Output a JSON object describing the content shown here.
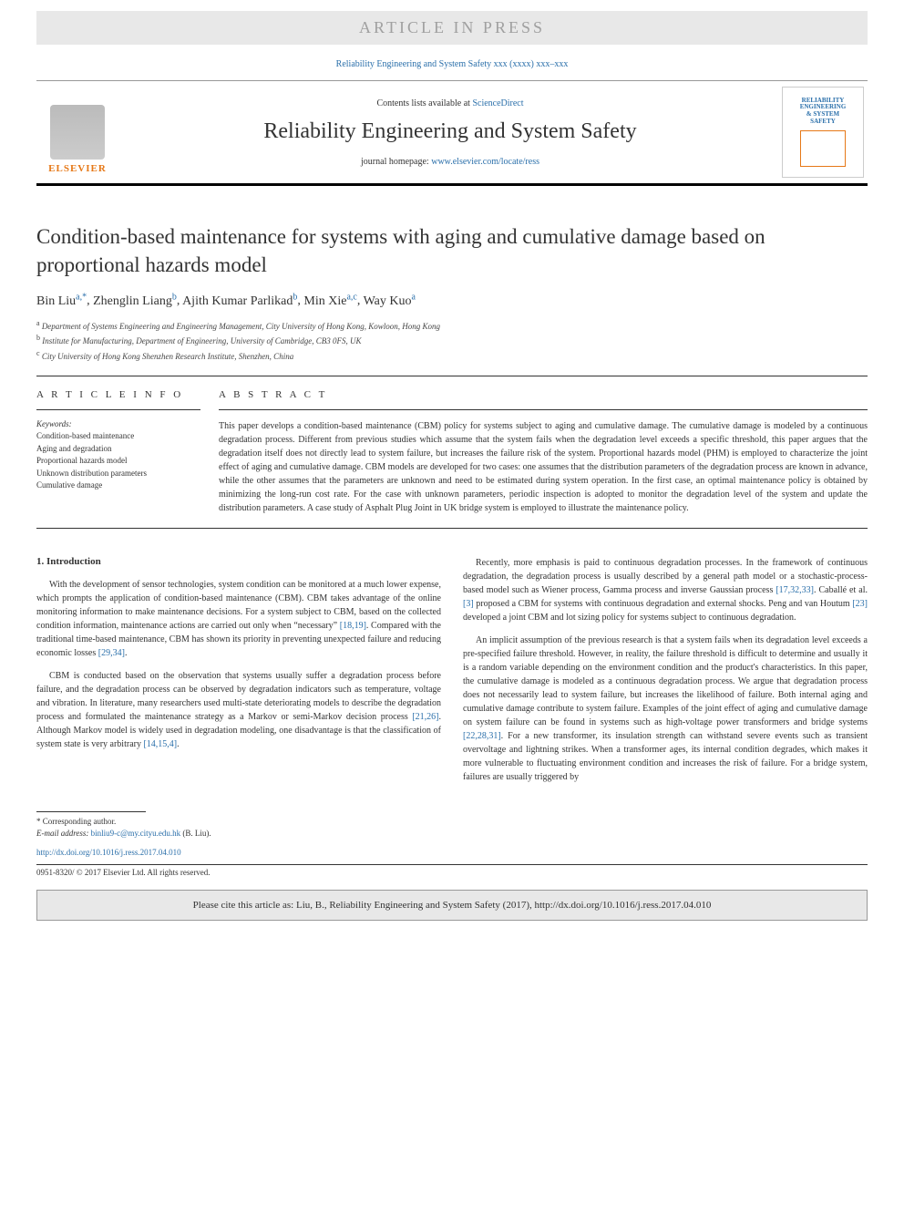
{
  "banner": {
    "text": "ARTICLE IN PRESS",
    "bg_color": "#e8e8e8",
    "text_color": "#a0a0a0"
  },
  "journal_reference": "Reliability Engineering and System Safety xxx (xxxx) xxx–xxx",
  "header": {
    "contents_prefix": "Contents lists available at ",
    "contents_link": "ScienceDirect",
    "journal_title": "Reliability Engineering and System Safety",
    "homepage_prefix": "journal homepage: ",
    "homepage_url": "www.elsevier.com/locate/ress",
    "publisher_logo": "ELSEVIER",
    "cover_lines": [
      "RELIABILITY",
      "ENGINEERING",
      "& SYSTEM",
      "SAFETY"
    ]
  },
  "article": {
    "title": "Condition-based maintenance for systems with aging and cumulative damage based on proportional hazards model",
    "authors_html": "Bin Liu<sup>a,*</sup>, Zhenglin Liang<sup>b</sup>, Ajith Kumar Parlikad<sup>b</sup>, Min Xie<sup>a,c</sup>, Way Kuo<sup>a</sup>",
    "authors": [
      {
        "name": "Bin Liu",
        "marks": "a,*"
      },
      {
        "name": "Zhenglin Liang",
        "marks": "b"
      },
      {
        "name": "Ajith Kumar Parlikad",
        "marks": "b"
      },
      {
        "name": "Min Xie",
        "marks": "a,c"
      },
      {
        "name": "Way Kuo",
        "marks": "a"
      }
    ],
    "affiliations": [
      {
        "mark": "a",
        "text": "Department of Systems Engineering and Engineering Management, City University of Hong Kong, Kowloon, Hong Kong"
      },
      {
        "mark": "b",
        "text": "Institute for Manufacturing, Department of Engineering, University of Cambridge, CB3 0FS, UK"
      },
      {
        "mark": "c",
        "text": "City University of Hong Kong Shenzhen Research Institute, Shenzhen, China"
      }
    ]
  },
  "info": {
    "heading": "A R T I C L E  I N F O",
    "keywords_label": "Keywords:",
    "keywords": [
      "Condition-based maintenance",
      "Aging and degradation",
      "Proportional hazards model",
      "Unknown distribution parameters",
      "Cumulative damage"
    ]
  },
  "abstract": {
    "heading": "A B S T R A C T",
    "text": "This paper develops a condition-based maintenance (CBM) policy for systems subject to aging and cumulative damage. The cumulative damage is modeled by a continuous degradation process. Different from previous studies which assume that the system fails when the degradation level exceeds a specific threshold, this paper argues that the degradation itself does not directly lead to system failure, but increases the failure risk of the system. Proportional hazards model (PHM) is employed to characterize the joint effect of aging and cumulative damage. CBM models are developed for two cases: one assumes that the distribution parameters of the degradation process are known in advance, while the other assumes that the parameters are unknown and need to be estimated during system operation. In the first case, an optimal maintenance policy is obtained by minimizing the long-run cost rate. For the case with unknown parameters, periodic inspection is adopted to monitor the degradation level of the system and update the distribution parameters. A case study of Asphalt Plug Joint in UK bridge system is employed to illustrate the maintenance policy."
  },
  "section1": {
    "heading": "1.  Introduction",
    "p1": "With the development of sensor technologies, system condition can be monitored at a much lower expense, which prompts the application of condition-based maintenance (CBM). CBM takes advantage of the online monitoring information to make maintenance decisions. For a system subject to CBM, based on the collected condition information, maintenance actions are carried out only when “necessary” ",
    "c1": "[18,19]",
    "p1b": ". Compared with the traditional time-based maintenance, CBM has shown its priority in preventing unexpected failure and reducing economic losses ",
    "c1b": "[29,34]",
    "p1c": ".",
    "p2": "CBM is conducted based on the observation that systems usually suffer a degradation process before failure, and the degradation process can be observed by degradation indicators such as temperature, voltage and vibration. In literature, many researchers used multi-state deteriorating models to describe the degradation process and formulated the maintenance strategy as a Markov or semi-Markov decision process ",
    "c2": "[21,26]",
    "p2b": ". Although Markov model is widely used in degradation modeling, one disadvantage is that the classification of system state is very arbitrary ",
    "c2b": "[14,15,4]",
    "p2c": ".",
    "p3": "Recently, more emphasis is paid to continuous degradation processes. In the framework of continuous degradation, the degradation process is usually described by a general path model or a stochastic-process-based model such as Wiener process, Gamma process and inverse Gaussian process ",
    "c3": "[17,32,33]",
    "p3b": ". Caballé et al. ",
    "c3b": "[3]",
    "p3c": " proposed a CBM for systems with continuous degradation and external shocks. Peng and van Houtum ",
    "c3d": "[23]",
    "p3d": " developed a joint CBM and lot sizing policy for systems subject to continuous degradation.",
    "p4": "An implicit assumption of the previous research is that a system fails when its degradation level exceeds a pre-specified failure threshold. However, in reality, the failure threshold is difficult to determine and usually it is a random variable depending on the environment condition and the product's characteristics. In this paper, the cumulative damage is modeled as a continuous degradation process. We argue that degradation process does not necessarily lead to system failure, but increases the likelihood of failure. Both internal aging and cumulative damage contribute to system failure. Examples of the joint effect of aging and cumulative damage on system failure can be found in systems such as high-voltage power transformers and bridge systems ",
    "c4": "[22,28,31]",
    "p4b": ". For a new transformer, its insulation strength can withstand severe events such as transient overvoltage and lightning strikes. When a transformer ages, its internal condition degrades, which makes it more vulnerable to fluctuating environment condition and increases the risk of failure. For a bridge system, failures are usually triggered by"
  },
  "footnotes": {
    "corresponding": "* Corresponding author.",
    "email_label": "E-mail address: ",
    "email": "binliu9-c@my.cityu.edu.hk",
    "email_suffix": " (B. Liu)."
  },
  "doi": {
    "url": "http://dx.doi.org/10.1016/j.ress.2017.04.010"
  },
  "copyright_line": "0951-8320/ © 2017 Elsevier Ltd. All rights reserved.",
  "citation_box": "Please cite this article as: Liu, B., Reliability Engineering and System Safety (2017), http://dx.doi.org/10.1016/j.ress.2017.04.010",
  "colors": {
    "link": "#2a6faa",
    "accent": "#e67817",
    "banner_bg": "#e8e8e8",
    "text": "#333333"
  },
  "typography": {
    "title_fontsize_pt": 17,
    "body_fontsize_pt": 7.5,
    "abstract_fontsize_pt": 7.5,
    "font_family": "Georgia, serif"
  }
}
